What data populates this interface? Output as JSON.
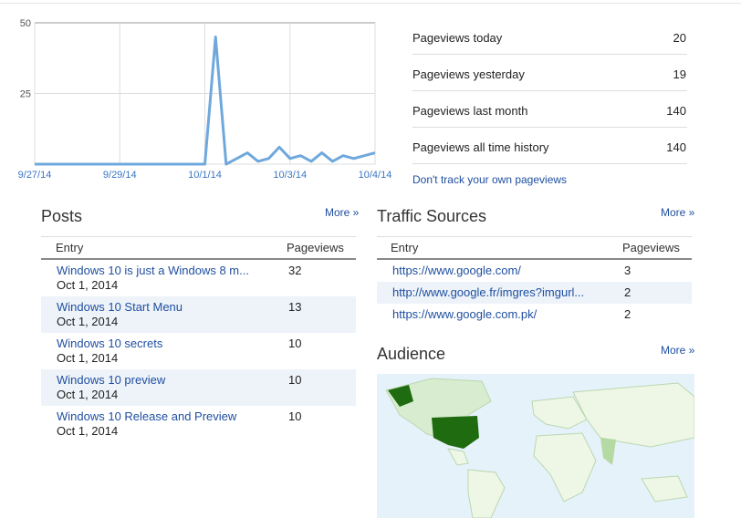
{
  "chart_data": {
    "type": "line",
    "categories": [
      "9/27/14",
      null,
      null,
      null,
      null,
      null,
      null,
      null,
      "9/29/14",
      null,
      null,
      null,
      null,
      null,
      null,
      null,
      "10/1/14",
      null,
      null,
      null,
      null,
      null,
      null,
      null,
      "10/3/14",
      null,
      null,
      null,
      null,
      null,
      null,
      null,
      "10/4/14"
    ],
    "values": [
      0,
      0,
      0,
      0,
      0,
      0,
      0,
      0,
      0,
      0,
      0,
      0,
      0,
      0,
      0,
      0,
      0,
      45,
      0,
      2,
      4,
      1,
      2,
      6,
      2,
      3,
      1,
      4,
      1,
      3,
      2,
      3,
      4
    ],
    "color": "#6fa8dc",
    "ylim": [
      0,
      50
    ],
    "yticks": [
      25,
      50
    ],
    "grid": true
  },
  "stats": [
    {
      "label": "Pageviews today",
      "value": "20"
    },
    {
      "label": "Pageviews yesterday",
      "value": "19"
    },
    {
      "label": "Pageviews last month",
      "value": "140"
    },
    {
      "label": "Pageviews all time history",
      "value": "140"
    }
  ],
  "stats_link": "Don't track your own pageviews",
  "posts": {
    "title": "Posts",
    "more": "More »",
    "columns": [
      "Entry",
      "Pageviews"
    ],
    "rows": [
      {
        "title": "Windows 10 is just a Windows 8 m...",
        "date": "Oct 1, 2014",
        "pageviews": "32"
      },
      {
        "title": "Windows 10 Start Menu",
        "date": "Oct 1, 2014",
        "pageviews": "13"
      },
      {
        "title": "Windows 10 secrets",
        "date": "Oct 1, 2014",
        "pageviews": "10"
      },
      {
        "title": "Windows 10 preview",
        "date": "Oct 1, 2014",
        "pageviews": "10"
      },
      {
        "title": "Windows 10 Release and Preview",
        "date": "Oct 1, 2014",
        "pageviews": "10"
      }
    ]
  },
  "traffic": {
    "title": "Traffic Sources",
    "more": "More »",
    "columns": [
      "Entry",
      "Pageviews"
    ],
    "rows": [
      {
        "url": "https://www.google.com/",
        "pageviews": "3"
      },
      {
        "url": "http://www.google.fr/imgres?imgurl...",
        "pageviews": "2"
      },
      {
        "url": "https://www.google.com.pk/",
        "pageviews": "2"
      }
    ]
  },
  "audience": {
    "title": "Audience",
    "more": "More »"
  }
}
